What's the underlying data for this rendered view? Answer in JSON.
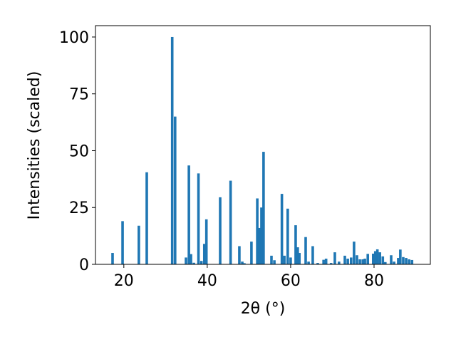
{
  "chart_data": {
    "type": "bar",
    "x_label": "2θ (°)",
    "y_label": "Intensities (scaled)",
    "color": "#1f77b4",
    "x": [
      17.3,
      19.7,
      23.6,
      25.5,
      31.6,
      32.3,
      34.9,
      35.6,
      36.1,
      36.8,
      37.9,
      38.6,
      39.3,
      39.8,
      43.1,
      45.6,
      47.7,
      48.4,
      48.9,
      50.6,
      52.0,
      52.5,
      53.0,
      53.5,
      55.4,
      56.1,
      57.9,
      58.5,
      59.3,
      60.0,
      61.2,
      61.7,
      62.1,
      63.6,
      64.3,
      65.3,
      66.5,
      67.9,
      68.5,
      69.7,
      70.6,
      71.6,
      73.0,
      73.7,
      74.5,
      75.2,
      75.9,
      76.6,
      77.3,
      77.8,
      78.5,
      79.8,
      80.3,
      80.8,
      81.4,
      82.1,
      82.7,
      84.1,
      84.8,
      85.8,
      86.3,
      87.0,
      87.7,
      88.4,
      89.1
    ],
    "values": [
      5,
      19,
      17,
      40.5,
      100,
      65,
      3,
      43.5,
      4.5,
      0.7,
      40,
      1.5,
      9,
      19.8,
      29.5,
      36.8,
      8,
      1.2,
      0.5,
      10,
      29,
      16,
      25,
      49.5,
      3.8,
      1.8,
      31,
      3.8,
      24.5,
      3,
      17.2,
      7.5,
      5,
      12,
      1.2,
      8,
      0.6,
      2,
      2.5,
      0.6,
      5.3,
      1.2,
      3.8,
      2.5,
      3,
      10,
      4,
      2.2,
      2.2,
      2.5,
      4.6,
      4.7,
      5.8,
      6.6,
      5.3,
      3.5,
      1,
      4,
      1.2,
      2.8,
      6.5,
      3.2,
      2.8,
      2.2,
      1.9
    ],
    "xlim": [
      13.2,
      93.5
    ],
    "ylim": [
      0,
      105
    ],
    "xticks": [
      20,
      40,
      60,
      80
    ],
    "yticks": [
      0,
      25,
      50,
      75,
      100
    ]
  }
}
